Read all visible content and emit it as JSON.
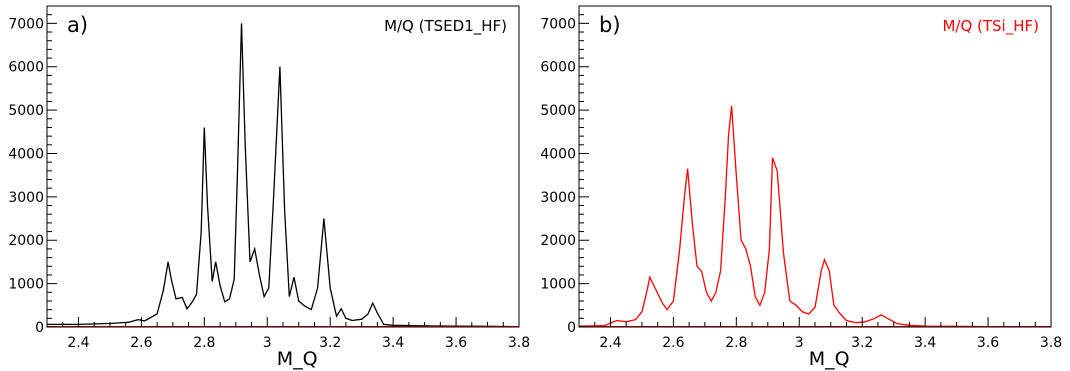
{
  "chart_data": [
    {
      "type": "line",
      "panel_label": "a)",
      "legend": "M/Q (TSED1_HF)",
      "legend_color": "#000000",
      "line_color": "#000000",
      "xlabel": "M_Q",
      "xlim": [
        2.3,
        3.8
      ],
      "ylim": [
        0,
        7400
      ],
      "xticks": [
        "2.4",
        "2.6",
        "2.8",
        "3",
        "3.2",
        "3.4",
        "3.6",
        "3.8"
      ],
      "yticks": [
        "0",
        "1000",
        "2000",
        "3000",
        "4000",
        "5000",
        "6000",
        "7000"
      ],
      "x": [
        2.3,
        2.4,
        2.5,
        2.56,
        2.59,
        2.61,
        2.63,
        2.65,
        2.67,
        2.685,
        2.695,
        2.71,
        2.73,
        2.745,
        2.76,
        2.775,
        2.79,
        2.8,
        2.81,
        2.825,
        2.836,
        2.85,
        2.865,
        2.88,
        2.895,
        2.905,
        2.918,
        2.93,
        2.945,
        2.96,
        2.975,
        2.99,
        3.005,
        3.02,
        3.04,
        3.055,
        3.07,
        3.085,
        3.1,
        3.12,
        3.14,
        3.16,
        3.18,
        3.2,
        3.22,
        3.235,
        3.25,
        3.27,
        3.3,
        3.32,
        3.335,
        3.35,
        3.37,
        3.4,
        3.5,
        3.6,
        3.7,
        3.8
      ],
      "y": [
        60,
        60,
        80,
        110,
        170,
        140,
        220,
        300,
        850,
        1500,
        1100,
        650,
        680,
        420,
        560,
        750,
        2200,
        4600,
        2800,
        1050,
        1500,
        950,
        580,
        650,
        1100,
        3500,
        7000,
        4200,
        1500,
        1800,
        1200,
        700,
        900,
        3000,
        6000,
        2700,
        700,
        1150,
        600,
        480,
        400,
        900,
        2500,
        900,
        250,
        420,
        200,
        150,
        180,
        300,
        550,
        320,
        60,
        40,
        25,
        20,
        15,
        10
      ]
    },
    {
      "type": "line",
      "panel_label": "b)",
      "legend": "M/Q (TSi_HF)",
      "legend_color": "#ff0000",
      "line_color": "#ff0000",
      "xlabel": "M_Q",
      "xlim": [
        2.3,
        3.8
      ],
      "ylim": [
        0,
        7400
      ],
      "xticks": [
        "2.4",
        "2.6",
        "2.8",
        "3",
        "3.2",
        "3.4",
        "3.6",
        "3.8"
      ],
      "yticks": [
        "0",
        "1000",
        "2000",
        "3000",
        "4000",
        "5000",
        "6000",
        "7000"
      ],
      "x": [
        2.3,
        2.38,
        2.42,
        2.45,
        2.48,
        2.5,
        2.515,
        2.525,
        2.545,
        2.565,
        2.58,
        2.6,
        2.62,
        2.635,
        2.645,
        2.66,
        2.675,
        2.69,
        2.705,
        2.72,
        2.735,
        2.75,
        2.765,
        2.775,
        2.785,
        2.8,
        2.815,
        2.83,
        2.845,
        2.86,
        2.875,
        2.89,
        2.905,
        2.915,
        2.93,
        2.95,
        2.97,
        2.99,
        3.01,
        3.03,
        3.05,
        3.07,
        3.08,
        3.095,
        3.11,
        3.13,
        3.15,
        3.18,
        3.21,
        3.24,
        3.26,
        3.28,
        3.31,
        3.35,
        3.4,
        3.5,
        3.6,
        3.7,
        3.8
      ],
      "y": [
        20,
        30,
        150,
        120,
        170,
        350,
        800,
        1150,
        850,
        550,
        400,
        600,
        1800,
        3000,
        3650,
        2400,
        1400,
        1280,
        800,
        600,
        800,
        1300,
        3000,
        4400,
        5100,
        3500,
        2000,
        1800,
        1400,
        700,
        500,
        800,
        1800,
        3900,
        3600,
        1700,
        600,
        500,
        350,
        300,
        450,
        1300,
        1550,
        1300,
        500,
        300,
        150,
        100,
        120,
        200,
        280,
        200,
        80,
        40,
        20,
        15,
        10,
        10,
        10
      ]
    }
  ]
}
